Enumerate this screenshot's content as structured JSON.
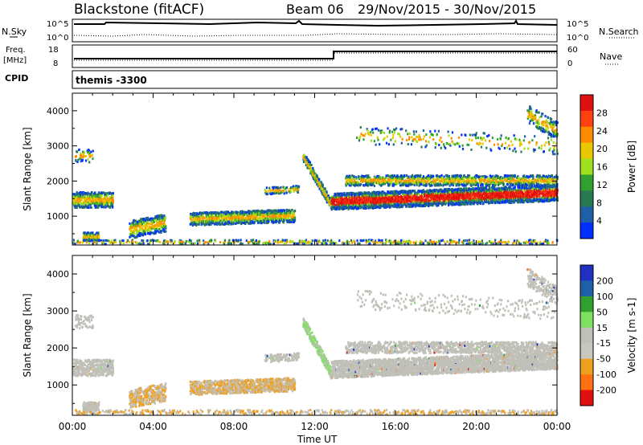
{
  "header": {
    "title": "Blackstone (fitACF)",
    "beam": "Beam 06",
    "date_range": "29/Nov/2015 - 30/Nov/2015"
  },
  "summary": {
    "nsky_label": "N.Sky",
    "nsearch_label": "N.Search",
    "freq_label": "Freq.",
    "freq_unit": "[MHz]",
    "nave_label": "Nave",
    "cpid_label": "CPID",
    "cpid_text": "themis -3300",
    "noise_ticks": [
      "10^5",
      "10^0"
    ],
    "freq_ticks": [
      "18",
      "8"
    ],
    "nave_ticks": [
      "60",
      "0"
    ]
  },
  "chart_data": [
    {
      "type": "heatmap",
      "name": "power",
      "ylabel": "Slant Range [km]",
      "xlabel": "",
      "x_ticks": [
        "00:00",
        "04:00",
        "08:00",
        "12:00",
        "16:00",
        "20:00",
        "00:00"
      ],
      "y_ticks": [
        "1000",
        "2000",
        "3000",
        "4000"
      ],
      "ylim": [
        180,
        4500
      ],
      "colorbar": {
        "label": "Power [dB]",
        "ticks": [
          "28",
          "24",
          "20",
          "16",
          "12",
          "8",
          "4"
        ],
        "colors": [
          "#e01010",
          "#ff4010",
          "#ff8c00",
          "#e8c800",
          "#9fe020",
          "#30a030",
          "#287850",
          "#1f5fa8",
          "#0030ff"
        ]
      }
    },
    {
      "type": "heatmap",
      "name": "velocity",
      "ylabel": "Slant Range [km]",
      "xlabel": "Time UT",
      "x_ticks": [
        "00:00",
        "04:00",
        "08:00",
        "12:00",
        "16:00",
        "20:00",
        "00:00"
      ],
      "y_ticks": [
        "1000",
        "2000",
        "3000",
        "4000"
      ],
      "ylim": [
        180,
        4500
      ],
      "colorbar": {
        "label": "Velocity [m s-1]",
        "ticks": [
          "200",
          "100",
          "50",
          "15",
          "-15",
          "-50",
          "-100",
          "-200"
        ],
        "colors": [
          "#2030c0",
          "#1f5fa8",
          "#30a030",
          "#7ee060",
          "#c0c0b8",
          "#c8c8c0",
          "#f0a020",
          "#ff7010",
          "#e01010"
        ]
      }
    }
  ]
}
